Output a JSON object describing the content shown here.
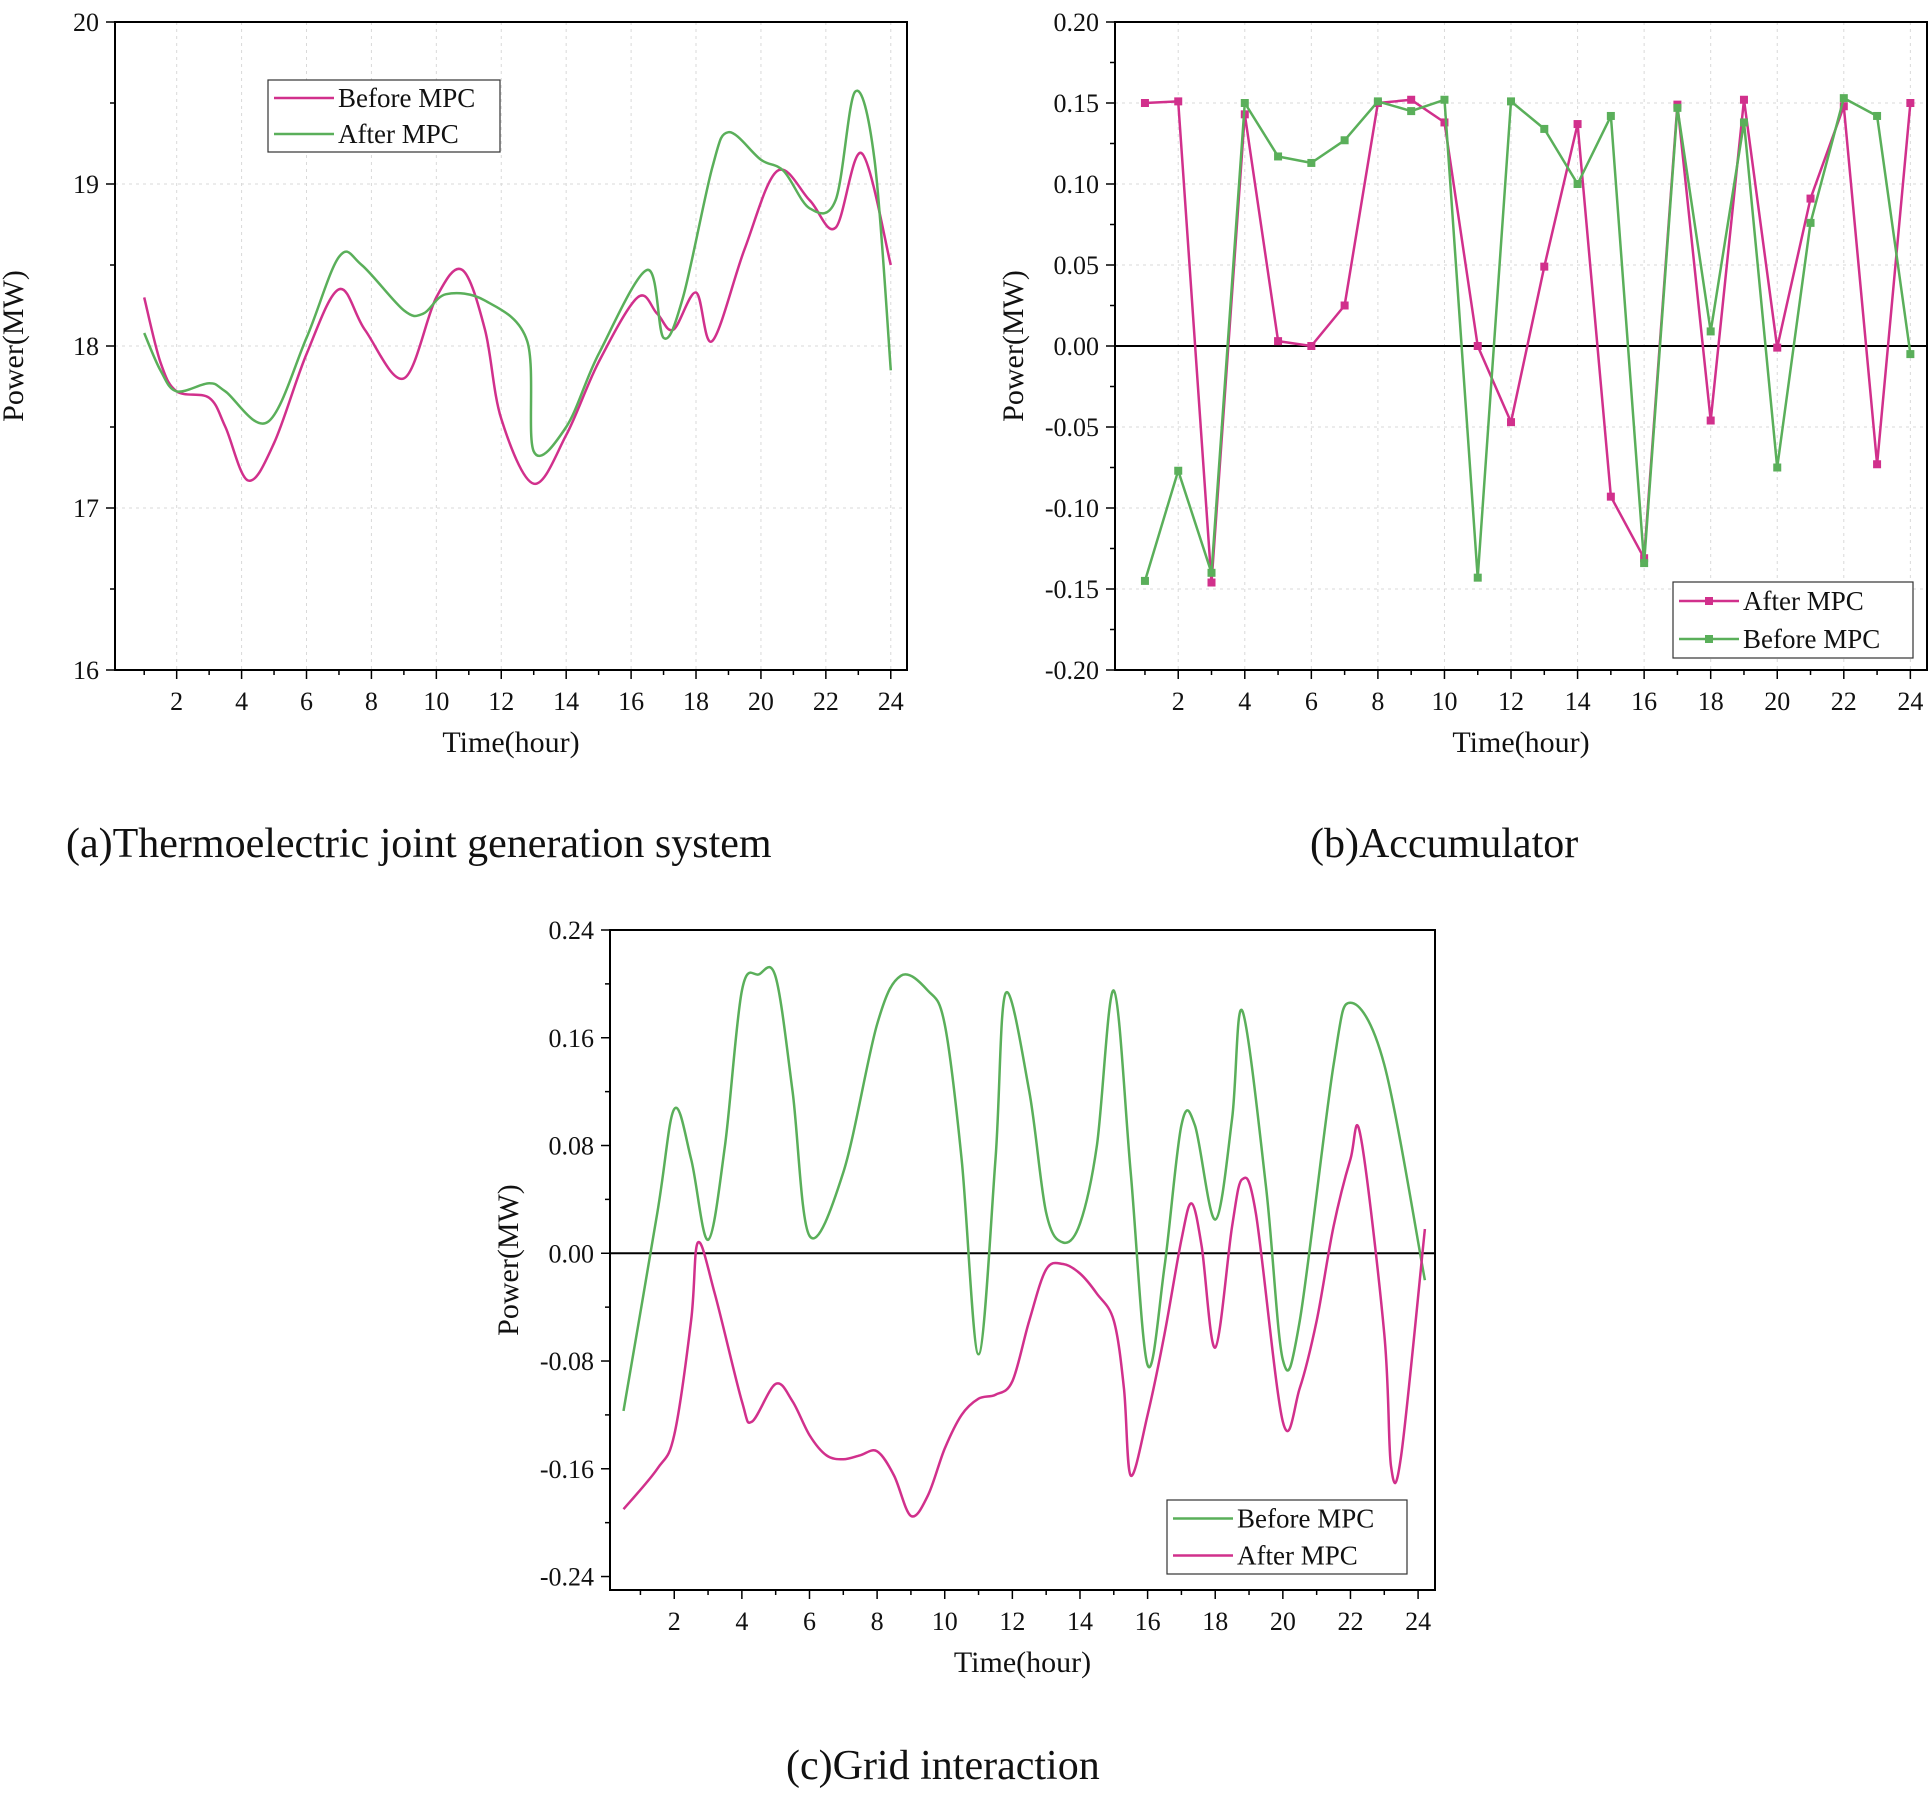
{
  "colors": {
    "magenta": "#d1308c",
    "green": "#5aaf5a",
    "axis": "#000000",
    "grid": "#d9d9d9"
  },
  "captions": {
    "a": "(a)Thermoelectric joint generation system",
    "b": "(b)Accumulator",
    "c": "(c)Grid interaction"
  },
  "chart_data": [
    {
      "id": "a",
      "type": "line",
      "title": "",
      "xlabel": "Time(hour)",
      "ylabel": "Power(MW)",
      "xlim": [
        0.1,
        24.5
      ],
      "ylim": [
        16,
        20
      ],
      "xticks": [
        2,
        4,
        6,
        8,
        10,
        12,
        14,
        16,
        18,
        20,
        22,
        24
      ],
      "yticks": [
        16,
        17,
        18,
        19,
        20
      ],
      "ytick_labels": [
        "16",
        "17",
        "18",
        "19",
        "20"
      ],
      "grid": true,
      "zero_line": false,
      "smooth": true,
      "legend": {
        "position": "top-left",
        "entries": [
          "Before MPC",
          "After MPC"
        ]
      },
      "series": [
        {
          "name": "Before MPC",
          "color": "magenta",
          "markers": false,
          "x": [
            1,
            1.5,
            2,
            3,
            3.5,
            4.2,
            5,
            6,
            7,
            7.8,
            9,
            10,
            10.8,
            11.5,
            12,
            13,
            14,
            15,
            16.2,
            16.8,
            17.3,
            18,
            18.5,
            19.5,
            20.5,
            21.5,
            22.3,
            23.1,
            24
          ],
          "y": [
            18.3,
            17.9,
            17.72,
            17.68,
            17.5,
            17.17,
            17.4,
            17.95,
            18.35,
            18.1,
            17.8,
            18.3,
            18.47,
            18.1,
            17.55,
            17.15,
            17.45,
            17.9,
            18.3,
            18.2,
            18.1,
            18.33,
            18.03,
            18.6,
            19.08,
            18.9,
            18.73,
            19.19,
            18.5
          ]
        },
        {
          "name": "After MPC",
          "color": "green",
          "markers": false,
          "x": [
            1,
            1.5,
            2,
            3,
            3.5,
            4.8,
            6,
            7,
            7.7,
            9,
            9.6,
            10.3,
            11.5,
            12.8,
            13,
            14,
            15,
            16.5,
            17,
            17.6,
            18.5,
            19,
            20,
            20.7,
            21.5,
            22.3,
            22.9,
            23.5,
            24
          ],
          "y": [
            18.08,
            17.85,
            17.72,
            17.77,
            17.72,
            17.53,
            18.05,
            18.55,
            18.5,
            18.22,
            18.2,
            18.32,
            18.28,
            18.03,
            17.35,
            17.5,
            17.95,
            18.47,
            18.05,
            18.3,
            19.1,
            19.32,
            19.15,
            19.08,
            18.85,
            18.9,
            19.57,
            19.15,
            17.85
          ]
        }
      ]
    },
    {
      "id": "b",
      "type": "line",
      "title": "",
      "xlabel": "Time(hour)",
      "ylabel": "Power(MW)",
      "xlim": [
        0.1,
        24.5
      ],
      "ylim": [
        -0.2,
        0.2
      ],
      "xticks": [
        2,
        4,
        6,
        8,
        10,
        12,
        14,
        16,
        18,
        20,
        22,
        24
      ],
      "yticks": [
        -0.2,
        -0.15,
        -0.1,
        -0.05,
        0,
        0.05,
        0.1,
        0.15,
        0.2
      ],
      "ytick_labels": [
        "-0.20",
        "-0.15",
        "-0.10",
        "-0.05",
        "0.00",
        "0.05",
        "0.10",
        "0.15",
        "0.20"
      ],
      "grid": true,
      "zero_line": true,
      "smooth": false,
      "legend": {
        "position": "bottom-right",
        "entries": [
          "After MPC",
          "Before MPC"
        ]
      },
      "series": [
        {
          "name": "After MPC",
          "color": "magenta",
          "markers": true,
          "x": [
            1,
            2,
            3,
            4,
            5,
            6,
            7,
            8,
            9,
            10,
            11,
            12,
            13,
            14,
            15,
            16,
            17,
            18,
            19,
            20,
            21,
            22,
            23,
            24
          ],
          "y": [
            0.15,
            0.151,
            -0.146,
            0.143,
            0.003,
            0,
            0.025,
            0.15,
            0.152,
            0.138,
            0,
            -0.047,
            0.049,
            0.137,
            -0.093,
            -0.131,
            0.149,
            -0.046,
            0.152,
            -0.001,
            0.091,
            0.148,
            -0.073,
            0.15
          ]
        },
        {
          "name": "Before MPC",
          "color": "green",
          "markers": true,
          "x": [
            1,
            2,
            3,
            4,
            5,
            6,
            7,
            8,
            9,
            10,
            11,
            12,
            13,
            14,
            15,
            16,
            17,
            18,
            19,
            20,
            21,
            22,
            23,
            24
          ],
          "y": [
            -0.145,
            -0.077,
            -0.14,
            0.15,
            0.117,
            0.113,
            0.127,
            0.151,
            0.145,
            0.152,
            -0.143,
            0.151,
            0.134,
            0.1,
            0.142,
            -0.134,
            0.147,
            0.009,
            0.138,
            -0.075,
            0.076,
            0.153,
            0.142,
            -0.005
          ]
        }
      ]
    },
    {
      "id": "c",
      "type": "line",
      "title": "",
      "xlabel": "Time(hour)",
      "ylabel": "Power(MW)",
      "xlim": [
        0.1,
        24.5
      ],
      "ylim": [
        -0.25,
        0.24
      ],
      "xticks": [
        2,
        4,
        6,
        8,
        10,
        12,
        14,
        16,
        18,
        20,
        22,
        24
      ],
      "yticks": [
        -0.24,
        -0.16,
        -0.08,
        0,
        0.08,
        0.16,
        0.24
      ],
      "ytick_labels": [
        "-0.24",
        "-0.16",
        "-0.08",
        "0.00",
        "0.08",
        "0.16",
        "0.24"
      ],
      "grid": false,
      "zero_line": true,
      "smooth": true,
      "legend": {
        "position": "bottom-right",
        "entries": [
          "Before MPC",
          "After MPC"
        ]
      },
      "series": [
        {
          "name": "Before MPC",
          "color": "green",
          "markers": false,
          "x": [
            0.5,
            1.5,
            2,
            2.5,
            3,
            3.5,
            4,
            4.5,
            5,
            5.5,
            6,
            7,
            8,
            8.7,
            9.5,
            10,
            10.5,
            11,
            11.5,
            11.8,
            12.5,
            13,
            13.5,
            14,
            14.5,
            15,
            15.5,
            16,
            16.5,
            17,
            17.4,
            18,
            18.5,
            18.8,
            19.5,
            20,
            20.5,
            21.5,
            22,
            23,
            24.2
          ],
          "y": [
            -0.117,
            0.03,
            0.107,
            0.07,
            0.01,
            0.08,
            0.195,
            0.207,
            0.205,
            0.12,
            0.013,
            0.06,
            0.17,
            0.206,
            0.195,
            0.17,
            0.07,
            -0.075,
            0.07,
            0.193,
            0.12,
            0.03,
            0.008,
            0.022,
            0.08,
            0.195,
            0.06,
            -0.083,
            -0.01,
            0.095,
            0.095,
            0.025,
            0.1,
            0.18,
            0.05,
            -0.079,
            -0.05,
            0.14,
            0.186,
            0.14,
            -0.02
          ]
        },
        {
          "name": "After MPC",
          "color": "magenta",
          "markers": false,
          "x": [
            0.5,
            1.5,
            2,
            2.5,
            2.7,
            3.2,
            4,
            4.3,
            5,
            5.5,
            6,
            6.5,
            7,
            7.5,
            8,
            8.5,
            9,
            9.5,
            10,
            10.5,
            11,
            11.5,
            12,
            12.5,
            13,
            13.5,
            14,
            14.5,
            15,
            15.3,
            15.5,
            16,
            16.5,
            17,
            17.3,
            17.6,
            18,
            18.5,
            18.8,
            19.2,
            20,
            20.5,
            21,
            21.5,
            22,
            22.3,
            23,
            23.2,
            23.5,
            24.2
          ],
          "y": [
            -0.19,
            -0.16,
            -0.135,
            -0.05,
            0.008,
            -0.03,
            -0.11,
            -0.125,
            -0.097,
            -0.11,
            -0.135,
            -0.15,
            -0.153,
            -0.15,
            -0.147,
            -0.165,
            -0.195,
            -0.18,
            -0.145,
            -0.12,
            -0.108,
            -0.105,
            -0.095,
            -0.05,
            -0.012,
            -0.008,
            -0.015,
            -0.03,
            -0.05,
            -0.1,
            -0.165,
            -0.12,
            -0.06,
            0.01,
            0.037,
            0.005,
            -0.07,
            0.02,
            0.055,
            0.03,
            -0.125,
            -0.1,
            -0.05,
            0.02,
            0.07,
            0.087,
            -0.06,
            -0.158,
            -0.15,
            0.018
          ]
        }
      ]
    }
  ]
}
